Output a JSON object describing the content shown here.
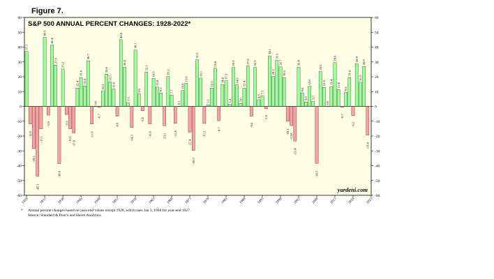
{
  "figure_label": "Figure 7.",
  "footnote": {
    "marker": "*",
    "text": "Annual percent changes based on year-end values except 1928, which uses Jan 3, 1928 for year-end 1927.",
    "source": "Source: Standard & Poor's and Haver Analytics."
  },
  "colors": {
    "plot_bg": "#ffffe6",
    "positive": "#99ff99",
    "negative": "#ff9f9f",
    "bar_edge": "#000000"
  },
  "chart_data": {
    "type": "bar",
    "title": "S&P 500 ANNUAL PERCENT CHANGES: 1928-2022*",
    "watermark": "yardeni.com",
    "xlabel": "",
    "ylabel": "",
    "ylim": [
      -60,
      60
    ],
    "y_ticks": [
      -60,
      -50,
      -40,
      -30,
      -20,
      -10,
      0,
      10,
      20,
      30,
      40,
      50,
      60
    ],
    "grid": false,
    "x_tick_labels": [
      "1928",
      "1933",
      "1938",
      "1943",
      "1948",
      "1953",
      "1958",
      "1963",
      "1968",
      "1973",
      "1978",
      "1983",
      "1988",
      "1993",
      "1998",
      "2003",
      "2008",
      "2013",
      "2018",
      "2023"
    ],
    "categories": [
      1928,
      1929,
      1930,
      1931,
      1932,
      1933,
      1934,
      1935,
      1936,
      1937,
      1938,
      1939,
      1940,
      1941,
      1942,
      1943,
      1944,
      1945,
      1946,
      1947,
      1948,
      1949,
      1950,
      1951,
      1952,
      1953,
      1954,
      1955,
      1956,
      1957,
      1958,
      1959,
      1960,
      1961,
      1962,
      1963,
      1964,
      1965,
      1966,
      1967,
      1968,
      1969,
      1970,
      1971,
      1972,
      1973,
      1974,
      1975,
      1976,
      1977,
      1978,
      1979,
      1980,
      1981,
      1982,
      1983,
      1984,
      1985,
      1986,
      1987,
      1988,
      1989,
      1990,
      1991,
      1992,
      1993,
      1994,
      1995,
      1996,
      1997,
      1998,
      1999,
      2000,
      2001,
      2002,
      2003,
      2004,
      2005,
      2006,
      2007,
      2008,
      2009,
      2010,
      2011,
      2012,
      2013,
      2014,
      2015,
      2016,
      2017,
      2018,
      2019,
      2020,
      2021,
      2022
    ],
    "values": [
      37.1,
      -11.8,
      -28.5,
      -47.1,
      -15.1,
      46.6,
      -5.9,
      41.4,
      27.9,
      -38.6,
      25.2,
      -5.5,
      -15.1,
      -17.9,
      12.4,
      19.4,
      13.8,
      30.7,
      -11.9,
      0.0,
      -0.7,
      10.3,
      21.8,
      16.5,
      11.8,
      -6.6,
      45.0,
      26.4,
      2.6,
      -14.3,
      38.1,
      8.5,
      -3.0,
      23.1,
      -11.8,
      18.9,
      13.0,
      9.1,
      -13.1,
      20.1,
      7.7,
      -11.4,
      0.1,
      10.8,
      15.6,
      -17.4,
      -29.7,
      31.5,
      19.1,
      -11.5,
      1.1,
      12.3,
      25.8,
      -9.7,
      14.8,
      17.3,
      1.4,
      26.3,
      14.6,
      2.0,
      12.4,
      27.3,
      -6.6,
      26.3,
      4.5,
      7.1,
      -1.5,
      34.1,
      20.3,
      31.0,
      26.7,
      19.5,
      -10.1,
      -13.0,
      -23.4,
      26.4,
      9.0,
      3.0,
      13.6,
      3.5,
      -38.5,
      23.5,
      12.8,
      0.0,
      13.4,
      29.6,
      11.4,
      -0.7,
      9.5,
      19.4,
      -6.2,
      28.9,
      16.3,
      26.9,
      -19.4
    ]
  }
}
